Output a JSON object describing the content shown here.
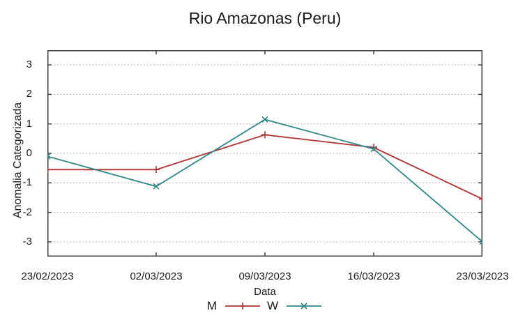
{
  "chart_data": {
    "type": "line",
    "title": "Rio Amazonas (Peru)",
    "xlabel": "Data",
    "ylabel": "Anomalia Categorizada",
    "categories": [
      "23/02/2023",
      "02/03/2023",
      "09/03/2023",
      "16/03/2023",
      "23/03/2023"
    ],
    "yticks": [
      3,
      2,
      1,
      0,
      -1,
      -2,
      -3
    ],
    "ylim": [
      -3.5,
      3.5
    ],
    "grid": "horizontal-dotted",
    "legend_position": "bottom-center",
    "colors": {
      "background": "#ffffff",
      "border": "#3c3c3c",
      "gridline": "#b4b4b4",
      "text": "#1a1a1a"
    },
    "series": [
      {
        "name": "M",
        "color": "#b03030",
        "marker": "plus",
        "values": [
          -0.55,
          -0.55,
          0.63,
          0.2,
          -1.55
        ]
      },
      {
        "name": "W",
        "color": "#2e8686",
        "marker": "x",
        "values": [
          -0.1,
          -1.12,
          1.15,
          0.15,
          -3.0
        ]
      }
    ]
  }
}
